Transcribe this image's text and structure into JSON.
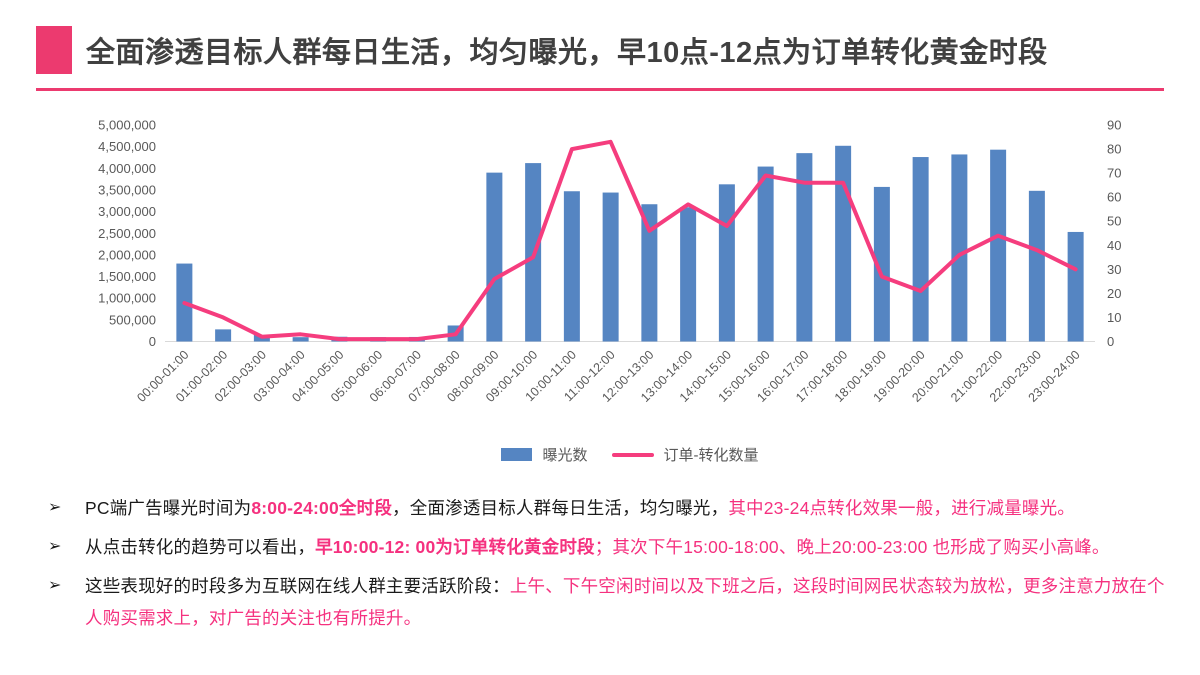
{
  "title": {
    "text": "全面渗透目标人群每日生活，均匀曝光，早10点-12点为订单转化黄金时段",
    "accent_color": "#EC3A6F"
  },
  "colors": {
    "bar": "#5585C2",
    "line": "#F53D7E",
    "pink_text": "#F5317F",
    "axis_text": "#595959",
    "axis_line": "#D9D9D9",
    "title_text": "#404040"
  },
  "chart_data": {
    "type": "bar+line combo",
    "categories": [
      "00:00-01:00",
      "01:00-02:00",
      "02:00-03:00",
      "03:00-04:00",
      "04:00-05:00",
      "05:00-06:00",
      "06:00-07:00",
      "07:00-08:00",
      "08:00-09:00",
      "09:00-10:00",
      "10:00-11:00",
      "11:00-12:00",
      "12:00-13:00",
      "13:00-14:00",
      "14:00-15:00",
      "15:00-16:00",
      "16:00-17:00",
      "17:00-18:00",
      "18:00-19:00",
      "19:00-20:00",
      "20:00-21:00",
      "21:00-22:00",
      "22:00-23:00",
      "23:00-24:00"
    ],
    "series": [
      {
        "name": "曝光数",
        "type": "bar",
        "axis": "left",
        "color": "#5585C2",
        "values": [
          1800000,
          280000,
          150000,
          100000,
          110000,
          100000,
          105000,
          370000,
          3900000,
          4120000,
          3470000,
          3440000,
          3170000,
          3100000,
          3630000,
          4040000,
          4350000,
          4520000,
          3570000,
          4260000,
          4320000,
          4430000,
          3480000,
          2530000
        ]
      },
      {
        "name": "订单-转化数量",
        "type": "line",
        "axis": "right",
        "color": "#F53D7E",
        "values": [
          16,
          10,
          2,
          3,
          1,
          1,
          1,
          3,
          26,
          35,
          80,
          83,
          46,
          57,
          48,
          69,
          66,
          66,
          27,
          21,
          36,
          44,
          38,
          30
        ]
      }
    ],
    "left_axis": {
      "min": 0,
      "max": 5000000,
      "step": 500000,
      "tick_labels": [
        "0",
        "500,000",
        "1,000,000",
        "1,500,000",
        "2,000,000",
        "2,500,000",
        "3,000,000",
        "3,500,000",
        "4,000,000",
        "4,500,000",
        "5,000,000"
      ]
    },
    "right_axis": {
      "min": 0,
      "max": 90,
      "step": 10,
      "tick_labels": [
        "0",
        "10",
        "20",
        "30",
        "40",
        "50",
        "60",
        "70",
        "80",
        "90"
      ]
    },
    "grid": false,
    "legend_position": "bottom"
  },
  "legend": {
    "bar_label": "曝光数",
    "line_label": "订单-转化数量"
  },
  "bullets": [
    {
      "marker": "➢",
      "segments": [
        {
          "text": "PC端广告曝光时间为",
          "style": "normal"
        },
        {
          "text": "8:00-24:00全时段",
          "style": "boldpink"
        },
        {
          "text": "，全面渗透目标人群每日生活，均匀曝光，",
          "style": "normal"
        },
        {
          "text": "其中23-24点转化效果一般，进行减量曝光。",
          "style": "pink"
        }
      ]
    },
    {
      "marker": "➢",
      "segments": [
        {
          "text": "从点击转化的趋势可以看出，",
          "style": "normal"
        },
        {
          "text": "早10:00-12: 00为订单转化黄金时段",
          "style": "boldpink"
        },
        {
          "text": "；其次下午15:00-18:00、晚上20:00-23:00 也形成了购买小高峰。",
          "style": "pink"
        }
      ]
    },
    {
      "marker": "➢",
      "segments": [
        {
          "text": "这些表现好的时段多为互联网在线人群主要活跃阶段：",
          "style": "normal"
        },
        {
          "text": "上午、下午空闲时间以及下班之后，这段时间网民状态较为放松，更多注意力放在个人购买需求上，对广告的关注也有所提升。",
          "style": "pink"
        }
      ]
    }
  ]
}
